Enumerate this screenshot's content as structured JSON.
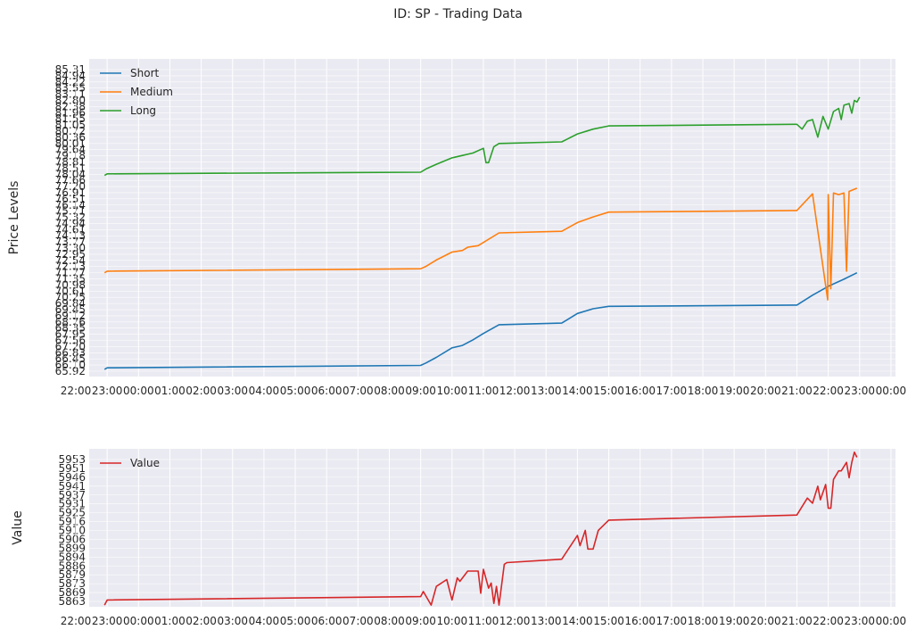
{
  "figure_title": "ID: SP - Trading Data",
  "colors": {
    "panel_bg": "#eaeaf2",
    "grid": "#ffffff",
    "short": "#1f77b4",
    "medium": "#ff7f0e",
    "long": "#2ca02c",
    "value": "#d62728"
  },
  "chart_data": [
    {
      "type": "line",
      "title": "",
      "xlabel": "",
      "ylabel": "Price Levels",
      "x_unit": "time (HH:MM)",
      "x_ticks": [
        "22:00",
        "23:00",
        "00:00",
        "01:00",
        "02:00",
        "03:00",
        "04:00",
        "05:00",
        "06:00",
        "07:00",
        "08:00",
        "09:00",
        "10:00",
        "11:00",
        "12:00",
        "13:00",
        "14:00",
        "15:00",
        "16:00",
        "17:00",
        "18:00",
        "19:00",
        "20:00",
        "21:00",
        "22:00",
        "23:00",
        "00:00"
      ],
      "y_ticks": [
        "65.92"
      ],
      "ylim": [
        65.5,
        85.4
      ],
      "grid": true,
      "legend": "upper left",
      "series": [
        {
          "name": "Short",
          "color_key": "short",
          "points": [
            [
              "22:55",
              65.95
            ],
            [
              "23:00",
              66.05
            ],
            [
              "09:00",
              66.2
            ],
            [
              "09:10",
              66.35
            ],
            [
              "09:30",
              66.7
            ],
            [
              "10:00",
              67.3
            ],
            [
              "10:20",
              67.45
            ],
            [
              "10:40",
              67.8
            ],
            [
              "11:00",
              68.2
            ],
            [
              "11:30",
              68.75
            ],
            [
              "13:30",
              68.85
            ],
            [
              "14:00",
              69.45
            ],
            [
              "14:30",
              69.75
            ],
            [
              "15:00",
              69.9
            ],
            [
              "21:00",
              69.98
            ],
            [
              "21:30",
              70.6
            ],
            [
              "22:00",
              71.15
            ],
            [
              "22:30",
              71.6
            ],
            [
              "22:55",
              72.0
            ]
          ]
        },
        {
          "name": "Medium",
          "color_key": "medium",
          "points": [
            [
              "22:55",
              72.0
            ],
            [
              "23:00",
              72.1
            ],
            [
              "09:00",
              72.25
            ],
            [
              "09:10",
              72.4
            ],
            [
              "09:30",
              72.8
            ],
            [
              "10:00",
              73.3
            ],
            [
              "10:20",
              73.4
            ],
            [
              "10:30",
              73.6
            ],
            [
              "10:50",
              73.7
            ],
            [
              "11:00",
              73.9
            ],
            [
              "11:30",
              74.5
            ],
            [
              "13:30",
              74.6
            ],
            [
              "14:00",
              75.15
            ],
            [
              "14:30",
              75.5
            ],
            [
              "15:00",
              75.8
            ],
            [
              "21:00",
              75.9
            ],
            [
              "21:30",
              76.95
            ],
            [
              "21:59",
              70.3
            ],
            [
              "22:00",
              76.9
            ],
            [
              "22:05",
              71.0
            ],
            [
              "22:10",
              77.0
            ],
            [
              "22:20",
              76.9
            ],
            [
              "22:30",
              77.0
            ],
            [
              "22:35",
              72.1
            ],
            [
              "22:40",
              77.1
            ],
            [
              "22:55",
              77.3
            ]
          ]
        },
        {
          "name": "Long",
          "color_key": "long",
          "points": [
            [
              "22:55",
              78.1
            ],
            [
              "23:00",
              78.2
            ],
            [
              "09:00",
              78.3
            ],
            [
              "09:10",
              78.5
            ],
            [
              "09:30",
              78.8
            ],
            [
              "10:00",
              79.2
            ],
            [
              "10:20",
              79.35
            ],
            [
              "10:40",
              79.5
            ],
            [
              "11:00",
              79.8
            ],
            [
              "11:05",
              78.9
            ],
            [
              "11:10",
              78.9
            ],
            [
              "11:20",
              79.9
            ],
            [
              "11:30",
              80.1
            ],
            [
              "13:30",
              80.2
            ],
            [
              "14:00",
              80.7
            ],
            [
              "14:30",
              81.0
            ],
            [
              "15:00",
              81.2
            ],
            [
              "21:00",
              81.3
            ],
            [
              "21:10",
              81.0
            ],
            [
              "21:20",
              81.5
            ],
            [
              "21:30",
              81.6
            ],
            [
              "21:40",
              80.5
            ],
            [
              "21:50",
              81.8
            ],
            [
              "22:00",
              81.0
            ],
            [
              "22:10",
              82.1
            ],
            [
              "22:20",
              82.3
            ],
            [
              "22:25",
              81.6
            ],
            [
              "22:30",
              82.5
            ],
            [
              "22:40",
              82.6
            ],
            [
              "22:45",
              82.0
            ],
            [
              "22:50",
              82.8
            ],
            [
              "22:55",
              82.7
            ],
            [
              "23:00",
              83.0
            ]
          ]
        }
      ]
    },
    {
      "type": "line",
      "title": "",
      "xlabel": "",
      "ylabel": "Value",
      "x_unit": "time (HH:MM)",
      "x_ticks": [
        "22:00",
        "23:00",
        "00:00",
        "01:00",
        "02:00",
        "03:00",
        "04:00",
        "05:00",
        "06:00",
        "07:00",
        "08:00",
        "09:00",
        "10:00",
        "11:00",
        "12:00",
        "13:00",
        "14:00",
        "15:00",
        "16:00",
        "17:00",
        "18:00",
        "19:00",
        "20:00",
        "21:00",
        "22:00",
        "23:00",
        "00:00"
      ],
      "y_ticks": [
        "5953",
        "5951",
        "5946",
        "5941",
        "5937",
        "5931",
        "5925",
        "5916",
        "5910",
        "5906",
        "5899",
        "5894",
        "5886",
        "5879",
        "5873",
        "5869",
        "5863"
      ],
      "ylim": [
        5862,
        5955
      ],
      "grid": true,
      "legend": "upper left",
      "series": [
        {
          "name": "Value",
          "color_key": "value",
          "points": [
            [
              "22:55",
              5863
            ],
            [
              "23:00",
              5866
            ],
            [
              "09:00",
              5868
            ],
            [
              "09:05",
              5871
            ],
            [
              "09:20",
              5863
            ],
            [
              "09:30",
              5874
            ],
            [
              "09:50",
              5878
            ],
            [
              "10:00",
              5866
            ],
            [
              "10:10",
              5879
            ],
            [
              "10:15",
              5877
            ],
            [
              "10:30",
              5883
            ],
            [
              "10:50",
              5883
            ],
            [
              "10:55",
              5870
            ],
            [
              "11:00",
              5884
            ],
            [
              "11:10",
              5873
            ],
            [
              "11:15",
              5876
            ],
            [
              "11:20",
              5864
            ],
            [
              "11:25",
              5874
            ],
            [
              "11:30",
              5863
            ],
            [
              "11:40",
              5887
            ],
            [
              "11:45",
              5888
            ],
            [
              "13:30",
              5890
            ],
            [
              "14:00",
              5904
            ],
            [
              "14:05",
              5898
            ],
            [
              "14:15",
              5907
            ],
            [
              "14:20",
              5896
            ],
            [
              "14:30",
              5896
            ],
            [
              "14:40",
              5907
            ],
            [
              "15:00",
              5913
            ],
            [
              "21:00",
              5916
            ],
            [
              "21:20",
              5926
            ],
            [
              "21:30",
              5923
            ],
            [
              "21:40",
              5933
            ],
            [
              "21:45",
              5925
            ],
            [
              "21:55",
              5934
            ],
            [
              "22:00",
              5920
            ],
            [
              "22:05",
              5920
            ],
            [
              "22:10",
              5937
            ],
            [
              "22:20",
              5942
            ],
            [
              "22:25",
              5942
            ],
            [
              "22:35",
              5947
            ],
            [
              "22:40",
              5938
            ],
            [
              "22:45",
              5947
            ],
            [
              "22:50",
              5953
            ],
            [
              "22:55",
              5950
            ]
          ]
        }
      ]
    }
  ],
  "upper_price_ticks": [
    "85.31",
    "84.94",
    "84.22",
    "83.55",
    "83.11",
    "82.80",
    "82.38",
    "81.96",
    "81.55",
    "81.05",
    "80.72",
    "80.36",
    "80.01",
    "79.64",
    "79.18",
    "78.81",
    "78.51",
    "78.04",
    "77.66",
    "77.20",
    "76.91",
    "76.51",
    "76.14",
    "75.71",
    "75.32",
    "74.94",
    "74.61",
    "74.13",
    "73.77",
    "73.30",
    "72.95",
    "72.54",
    "72.13",
    "71.77",
    "71.35",
    "70.98",
    "70.61",
    "70.25",
    "69.84",
    "69.45",
    "69.12",
    "68.76",
    "68.35",
    "67.95",
    "67.56",
    "67.20",
    "66.83",
    "66.45",
    "66.10",
    "65.92"
  ]
}
